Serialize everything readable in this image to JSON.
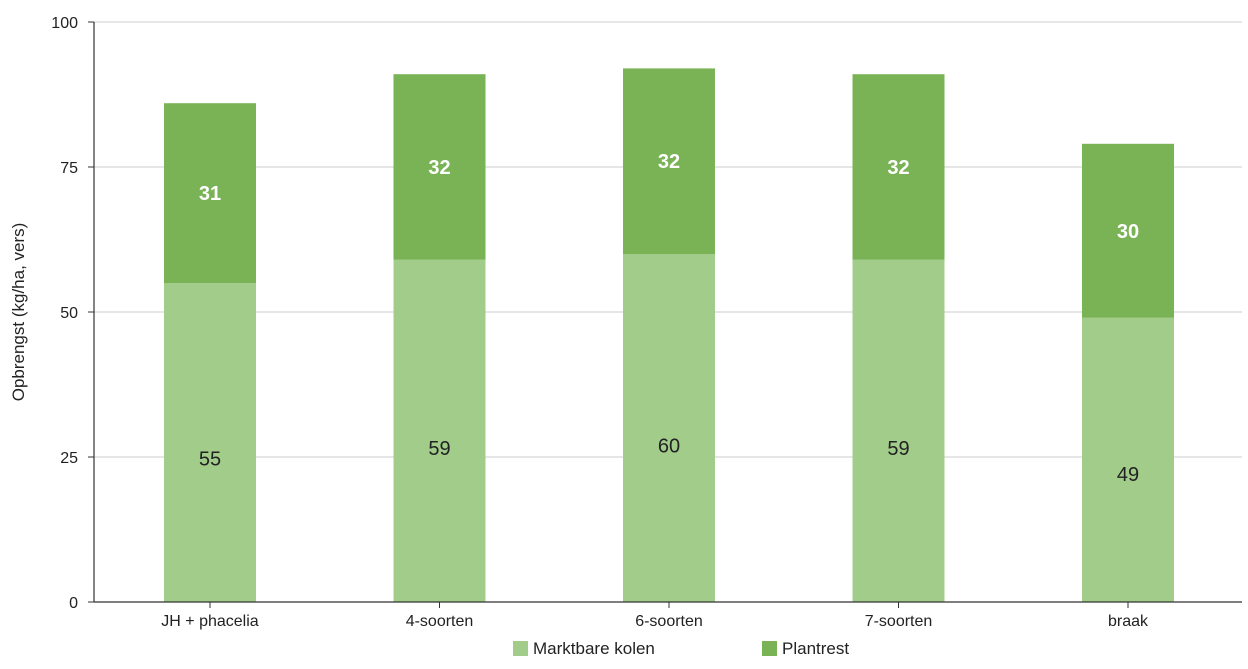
{
  "chart_data": {
    "type": "bar",
    "stacked": true,
    "categories": [
      "JH + phacelia",
      "4-soorten",
      "6-soorten",
      "7-soorten",
      "braak"
    ],
    "series": [
      {
        "name": "Marktbare kolen",
        "values": [
          55,
          59,
          60,
          59,
          49
        ],
        "color": "#a2cc8a"
      },
      {
        "name": "Plantrest",
        "values": [
          31,
          32,
          32,
          32,
          30
        ],
        "color": "#7ab356"
      }
    ],
    "title": "",
    "xlabel": "",
    "ylabel": "Opbrengst (kg/ha, vers)",
    "ylim": [
      0,
      100
    ],
    "yticks": [
      0,
      25,
      50,
      75,
      100
    ],
    "grid": true,
    "legend": "bottom-center",
    "colors": {
      "grid": "#cccccc",
      "axis": "#333333"
    }
  }
}
